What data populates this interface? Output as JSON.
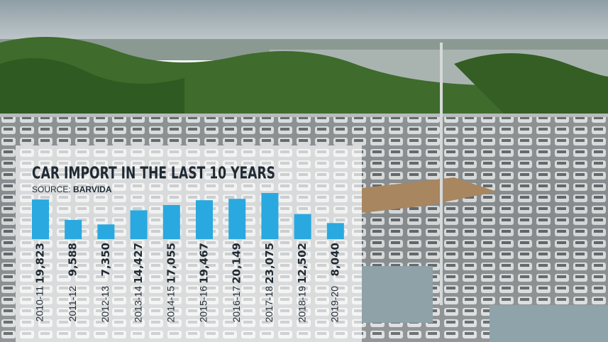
{
  "chart_data": {
    "type": "bar",
    "title": "CAR IMPORT IN THE LAST 10 YEARS",
    "source_label": "SOURCE:",
    "source": "BARVIDA",
    "categories": [
      "2010-11",
      "2011-12",
      "2012-13",
      "2013-14",
      "2014-15",
      "2015-16",
      "2016-17",
      "2017-18",
      "2018-19",
      "2019-20"
    ],
    "values": [
      19823,
      9588,
      7350,
      14427,
      17055,
      19467,
      20149,
      23075,
      12502,
      8040
    ],
    "value_labels": [
      "19,823",
      "9,588",
      "7,350",
      "14,427",
      "17,055",
      "19,467",
      "20,149",
      "23,075",
      "12,502",
      "8,040"
    ],
    "color": "#29a9e0"
  }
}
